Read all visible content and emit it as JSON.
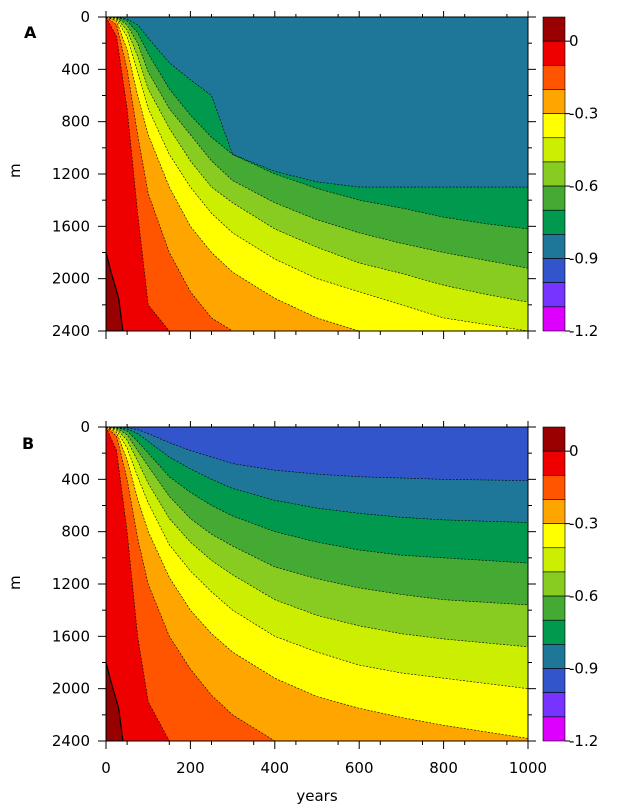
{
  "figure": {
    "xlabel": "years",
    "ylabel": "m"
  },
  "chart_data": [
    {
      "type": "heatmap",
      "panel_label": "A",
      "x_axis": {
        "ticks": [
          0,
          200,
          400,
          600,
          800,
          1000
        ],
        "tick_labels_shown": false,
        "range": [
          0,
          1000
        ]
      },
      "y_axis": {
        "ticks": [
          0,
          400,
          800,
          1200,
          1600,
          2000,
          2400
        ],
        "range": [
          0,
          2400
        ],
        "inverted": true
      },
      "colorbar": {
        "levels": [
          0.1,
          0,
          -0.1,
          -0.2,
          -0.3,
          -0.4,
          -0.5,
          -0.6,
          -0.7,
          -0.8,
          -0.9,
          -1.0,
          -1.1,
          -1.2
        ],
        "colors": [
          "#990000",
          "#ee0000",
          "#ff5500",
          "#ffa500",
          "#ffff00",
          "#ccee00",
          "#88cc22",
          "#44aa33",
          "#00994d",
          "#1e7799",
          "#3355cc",
          "#7733ff",
          "#dd00ff"
        ],
        "tick_labels": [
          "0",
          "-0.3",
          "-0.6",
          "-0.9",
          "-1.2"
        ],
        "tick_values": [
          0,
          -0.3,
          -0.6,
          -0.9,
          -1.2
        ]
      },
      "contour_bands_depth_at_x": {
        "x": [
          0,
          25,
          50,
          75,
          100,
          150,
          200,
          250,
          300,
          400,
          500,
          600,
          700,
          800,
          900,
          1000
        ],
        "boundaries": [
          {
            "level": 0,
            "depth": [
              0,
              150,
              700,
              1500,
              2200,
              2400,
              2400,
              2400,
              2400,
              2400,
              2400,
              2400,
              2400,
              2400,
              2400,
              2400
            ]
          },
          {
            "level": -0.1,
            "depth": [
              0,
              60,
              400,
              900,
              1350,
              1800,
              2100,
              2300,
              2400,
              2400,
              2400,
              2400,
              2400,
              2400,
              2400,
              2400
            ]
          },
          {
            "level": -0.2,
            "depth": [
              0,
              30,
              250,
              600,
              900,
              1300,
              1600,
              1800,
              1950,
              2150,
              2300,
              2400,
              2400,
              2400,
              2400,
              2400
            ]
          },
          {
            "level": -0.3,
            "depth": [
              0,
              20,
              150,
              420,
              700,
              1050,
              1300,
              1500,
              1650,
              1850,
              2000,
              2100,
              2200,
              2300,
              2350,
              2400
            ]
          },
          {
            "level": -0.4,
            "depth": [
              0,
              10,
              100,
              300,
              550,
              850,
              1100,
              1300,
              1420,
              1620,
              1760,
              1880,
              1960,
              2050,
              2120,
              2180
            ]
          },
          {
            "level": -0.5,
            "depth": [
              0,
              5,
              60,
              200,
              420,
              700,
              900,
              1100,
              1250,
              1420,
              1550,
              1650,
              1730,
              1800,
              1860,
              1920
            ]
          },
          {
            "level": -0.6,
            "depth": [
              0,
              3,
              30,
              120,
              280,
              550,
              750,
              920,
              1050,
              1200,
              1310,
              1400,
              1460,
              1530,
              1580,
              1620
            ]
          },
          {
            "level": -0.7,
            "depth": [
              0,
              2,
              15,
              60,
              160,
              350,
              480,
              600,
              1050,
              1180,
              1260,
              1300,
              1300,
              1300,
              1300,
              1300
            ]
          }
        ]
      }
    },
    {
      "type": "heatmap",
      "panel_label": "B",
      "x_axis": {
        "ticks": [
          0,
          200,
          400,
          600,
          800,
          1000
        ],
        "tick_labels": [
          "0",
          "200",
          "400",
          "600",
          "800",
          "1000"
        ],
        "range": [
          0,
          1000
        ]
      },
      "y_axis": {
        "ticks": [
          0,
          400,
          800,
          1200,
          1600,
          2000,
          2400
        ],
        "range": [
          0,
          2400
        ],
        "inverted": true
      },
      "colorbar": {
        "levels": [
          0.1,
          0,
          -0.1,
          -0.2,
          -0.3,
          -0.4,
          -0.5,
          -0.6,
          -0.7,
          -0.8,
          -0.9,
          -1.0,
          -1.1,
          -1.2
        ],
        "colors": [
          "#990000",
          "#ee0000",
          "#ff5500",
          "#ffa500",
          "#ffff00",
          "#ccee00",
          "#88cc22",
          "#44aa33",
          "#00994d",
          "#1e7799",
          "#3355cc",
          "#7733ff",
          "#dd00ff"
        ],
        "tick_labels": [
          "0",
          "-0.3",
          "-0.6",
          "-0.9",
          "-1.2"
        ],
        "tick_values": [
          0,
          -0.3,
          -0.6,
          -0.9,
          -1.2
        ]
      },
      "contour_bands_depth_at_x": {
        "x": [
          0,
          25,
          50,
          75,
          100,
          150,
          200,
          250,
          300,
          400,
          500,
          600,
          700,
          800,
          900,
          1000
        ],
        "boundaries": [
          {
            "level": 0,
            "depth": [
              0,
              180,
              800,
              1600,
              2100,
              2400,
              2400,
              2400,
              2400,
              2400,
              2400,
              2400,
              2400,
              2400,
              2400,
              2400
            ]
          },
          {
            "level": -0.1,
            "depth": [
              0,
              70,
              400,
              850,
              1200,
              1600,
              1850,
              2050,
              2200,
              2400,
              2400,
              2400,
              2400,
              2400,
              2400,
              2400
            ]
          },
          {
            "level": -0.2,
            "depth": [
              0,
              40,
              250,
              550,
              800,
              1150,
              1400,
              1580,
              1720,
              1920,
              2060,
              2150,
              2220,
              2280,
              2330,
              2380
            ]
          },
          {
            "level": -0.3,
            "depth": [
              0,
              25,
              160,
              380,
              580,
              900,
              1100,
              1260,
              1400,
              1600,
              1720,
              1820,
              1880,
              1920,
              1960,
              2000
            ]
          },
          {
            "level": -0.4,
            "depth": [
              0,
              15,
              100,
              260,
              430,
              700,
              880,
              1020,
              1130,
              1320,
              1440,
              1520,
              1580,
              1620,
              1650,
              1680
            ]
          },
          {
            "level": -0.5,
            "depth": [
              0,
              8,
              60,
              180,
              300,
              530,
              700,
              820,
              910,
              1070,
              1160,
              1230,
              1280,
              1320,
              1340,
              1360
            ]
          },
          {
            "level": -0.6,
            "depth": [
              0,
              4,
              30,
              110,
              200,
              380,
              500,
              600,
              680,
              800,
              880,
              940,
              980,
              1000,
              1020,
              1040
            ]
          },
          {
            "level": -0.7,
            "depth": [
              0,
              2,
              15,
              50,
              110,
              230,
              320,
              400,
              470,
              560,
              620,
              660,
              690,
              710,
              720,
              730
            ]
          },
          {
            "level": -0.8,
            "depth": [
              0,
              1,
              5,
              20,
              50,
              120,
              180,
              230,
              280,
              330,
              360,
              380,
              390,
              400,
              405,
              410
            ]
          }
        ]
      }
    }
  ]
}
